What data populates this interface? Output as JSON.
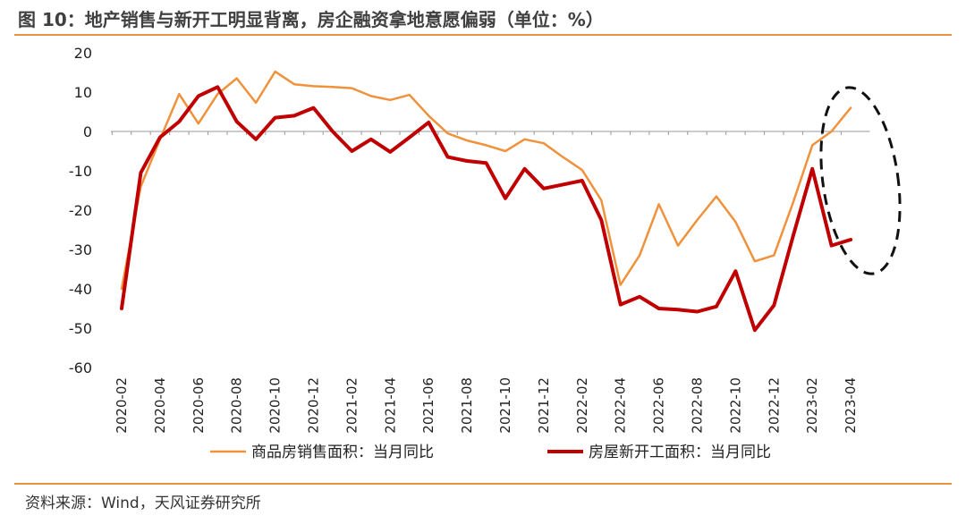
{
  "title": "图 10：地产销售与新开工明显背离，房企融资拿地意愿偏弱（单位：%）",
  "source": "资料来源：Wind，天风证券研究所",
  "chart_data": {
    "type": "line",
    "x": [
      "2020-02",
      "2020-03",
      "2020-04",
      "2020-05",
      "2020-06",
      "2020-07",
      "2020-08",
      "2020-09",
      "2020-10",
      "2020-11",
      "2020-12",
      "2021-01",
      "2021-02",
      "2021-03",
      "2021-04",
      "2021-05",
      "2021-06",
      "2021-07",
      "2021-08",
      "2021-09",
      "2021-10",
      "2021-11",
      "2021-12",
      "2022-01",
      "2022-02",
      "2022-03",
      "2022-04",
      "2022-05",
      "2022-06",
      "2022-07",
      "2022-08",
      "2022-09",
      "2022-10",
      "2022-11",
      "2022-12",
      "2023-01",
      "2023-02",
      "2023-03",
      "2023-04"
    ],
    "xticks": [
      "2020-02",
      "2020-04",
      "2020-06",
      "2020-08",
      "2020-10",
      "2020-12",
      "2021-02",
      "2021-04",
      "2021-06",
      "2021-08",
      "2021-10",
      "2021-12",
      "2022-02",
      "2022-04",
      "2022-06",
      "2022-08",
      "2022-10",
      "2022-12",
      "2023-02",
      "2023-04"
    ],
    "ylim": [
      -60,
      20
    ],
    "yticks": [
      20,
      10,
      0,
      -10,
      -20,
      -30,
      -40,
      -50,
      -60
    ],
    "series": [
      {
        "name": "商品房销售面积：当月同比",
        "color": "#f0913c",
        "width": 2.5,
        "values": [
          -40,
          -14,
          -2,
          9.5,
          2,
          9.5,
          13.5,
          7.3,
          15.2,
          12,
          11.5,
          11.3,
          11,
          9,
          8,
          9.3,
          4,
          -0.5,
          -2.3,
          -3.5,
          -5,
          -2,
          -3,
          -6.5,
          -9.8,
          -17.5,
          -39,
          -31.5,
          -18.5,
          -29,
          -22.5,
          -16.5,
          -23,
          -33,
          -31.5,
          -18,
          -3.5,
          0,
          6
        ]
      },
      {
        "name": "房屋新开工面积：当月同比",
        "color": "#c00000",
        "width": 4,
        "values": [
          -45,
          -10.5,
          -1.5,
          2.5,
          9,
          11.3,
          2.5,
          -2,
          3.5,
          4,
          6,
          0,
          -5,
          -2,
          -5.2,
          -1.5,
          2.3,
          -6.5,
          -7.5,
          -8,
          -17,
          -9.5,
          -14.5,
          -13.5,
          -12.5,
          -22.5,
          -44,
          -42,
          -45,
          -45.3,
          -45.8,
          -44.5,
          -35.5,
          -50.5,
          -44.2,
          -26.5,
          -9.5,
          -29,
          -27.5
        ]
      }
    ]
  }
}
